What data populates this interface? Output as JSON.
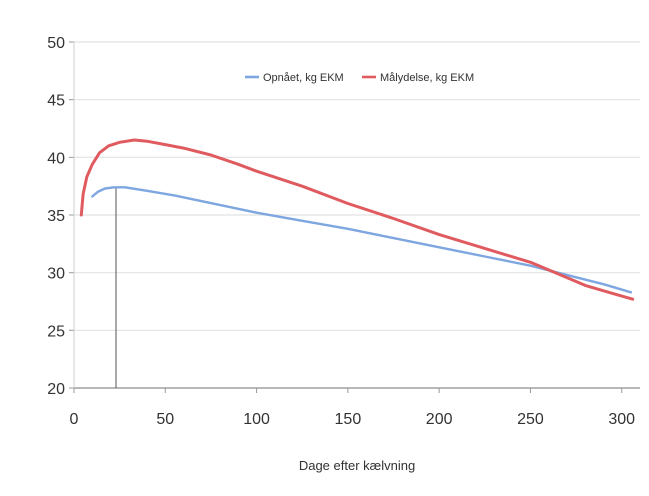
{
  "chart_data": {
    "type": "line",
    "xlabel": "Dage efter kælvning",
    "ylabel": "",
    "xlim": [
      0,
      310
    ],
    "ylim": [
      20,
      50
    ],
    "x_ticks": [
      0,
      50,
      100,
      150,
      200,
      250,
      300
    ],
    "y_ticks": [
      20,
      25,
      30,
      35,
      40,
      45,
      50
    ],
    "grid": "horizontal",
    "legend_position": "top-center",
    "reference_line_x": 23,
    "series": [
      {
        "name": "Opnået, kg EKM",
        "color": "#7ea6e0",
        "points": [
          [
            10,
            36.6
          ],
          [
            13,
            37.0
          ],
          [
            17,
            37.3
          ],
          [
            22,
            37.4
          ],
          [
            28,
            37.4
          ],
          [
            40,
            37.1
          ],
          [
            55,
            36.7
          ],
          [
            70,
            36.2
          ],
          [
            85,
            35.7
          ],
          [
            100,
            35.2
          ],
          [
            125,
            34.5
          ],
          [
            150,
            33.8
          ],
          [
            175,
            33.0
          ],
          [
            200,
            32.2
          ],
          [
            225,
            31.4
          ],
          [
            250,
            30.6
          ],
          [
            275,
            29.6
          ],
          [
            290,
            29.0
          ],
          [
            305,
            28.3
          ]
        ]
      },
      {
        "name": "Målydelse, kg EKM",
        "color": "#e05b5f",
        "points": [
          [
            4,
            35.0
          ],
          [
            5,
            36.8
          ],
          [
            7,
            38.3
          ],
          [
            10,
            39.4
          ],
          [
            14,
            40.4
          ],
          [
            19,
            41.0
          ],
          [
            25,
            41.3
          ],
          [
            33,
            41.5
          ],
          [
            40,
            41.4
          ],
          [
            50,
            41.1
          ],
          [
            60,
            40.8
          ],
          [
            75,
            40.2
          ],
          [
            90,
            39.4
          ],
          [
            100,
            38.8
          ],
          [
            125,
            37.5
          ],
          [
            150,
            36.0
          ],
          [
            175,
            34.7
          ],
          [
            200,
            33.3
          ],
          [
            225,
            32.1
          ],
          [
            250,
            30.9
          ],
          [
            265,
            29.9
          ],
          [
            280,
            28.9
          ],
          [
            295,
            28.2
          ],
          [
            306,
            27.7
          ]
        ]
      }
    ]
  }
}
